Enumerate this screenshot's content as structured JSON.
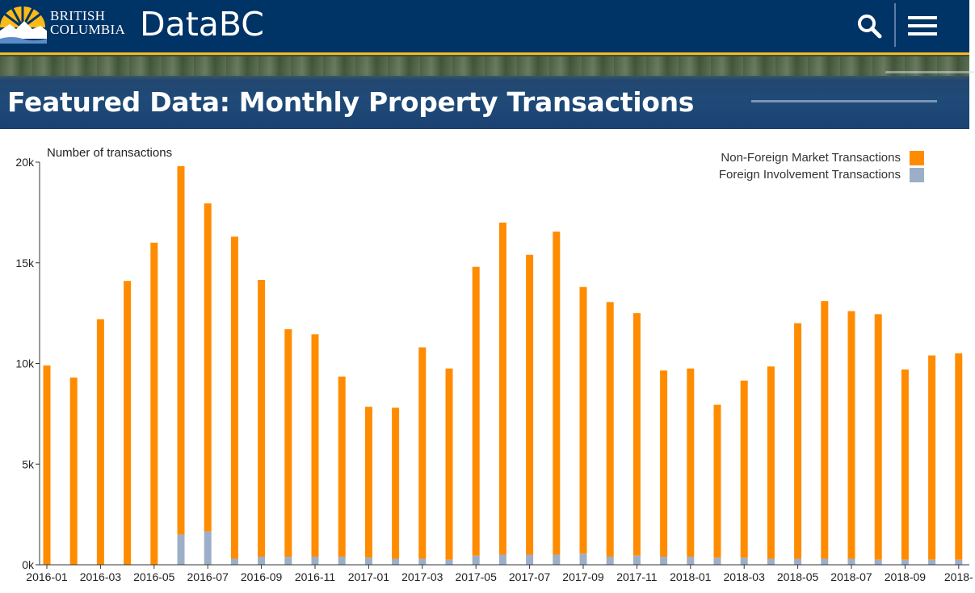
{
  "header": {
    "logo_line1": "BRITISH",
    "logo_line2": "COLUMBIA",
    "brand": "DataBC",
    "search_icon": "search-icon",
    "menu_icon": "hamburger-menu-icon",
    "colors": {
      "bar": "#003366",
      "accent": "#fcba19"
    }
  },
  "banner": {
    "title": "Featured Data: Monthly Property Transactions"
  },
  "chart_data": {
    "type": "bar",
    "stacked": true,
    "ylabel": "Number of transactions",
    "ylim": [
      0,
      20000
    ],
    "yticks": [
      "0k",
      "5k",
      "10k",
      "15k",
      "20k"
    ],
    "legend_position": "top-right",
    "grid": false,
    "categories": [
      "2016-01",
      "2016-02",
      "2016-03",
      "2016-04",
      "2016-05",
      "2016-06",
      "2016-07",
      "2016-08",
      "2016-09",
      "2016-10",
      "2016-11",
      "2016-12",
      "2017-01",
      "2017-02",
      "2017-03",
      "2017-04",
      "2017-05",
      "2017-06",
      "2017-07",
      "2017-08",
      "2017-09",
      "2017-10",
      "2017-11",
      "2017-12",
      "2018-01",
      "2018-02",
      "2018-03",
      "2018-04",
      "2018-05",
      "2018-06",
      "2018-07",
      "2018-08",
      "2018-09",
      "2018-10",
      "2018-11"
    ],
    "xtick_labels": [
      "2016-01",
      "2016-03",
      "2016-05",
      "2016-07",
      "2016-09",
      "2016-11",
      "2017-01",
      "2017-03",
      "2017-05",
      "2017-07",
      "2017-09",
      "2017-11",
      "2018-01",
      "2018-03",
      "2018-05",
      "2018-07",
      "2018-09",
      "2018-"
    ],
    "series": [
      {
        "name": "Foreign Involvement Transactions",
        "color": "#9dafc8",
        "values": [
          0,
          0,
          0,
          0,
          0,
          1500,
          1650,
          300,
          400,
          400,
          400,
          400,
          350,
          300,
          300,
          250,
          450,
          500,
          500,
          500,
          550,
          400,
          450,
          400,
          400,
          350,
          350,
          300,
          300,
          300,
          300,
          250,
          250,
          250,
          250
        ]
      },
      {
        "name": "Non-Foreign Market Transactions",
        "color": "#ff8c00",
        "values": [
          9900,
          9300,
          12200,
          14100,
          16000,
          18300,
          16300,
          16000,
          13750,
          11300,
          11050,
          8950,
          7500,
          7500,
          10500,
          9500,
          14350,
          16500,
          14900,
          16050,
          13250,
          12650,
          12050,
          9250,
          9350,
          7600,
          8800,
          9550,
          11700,
          12800,
          12300,
          12200,
          9450,
          10150,
          10250
        ]
      }
    ]
  }
}
